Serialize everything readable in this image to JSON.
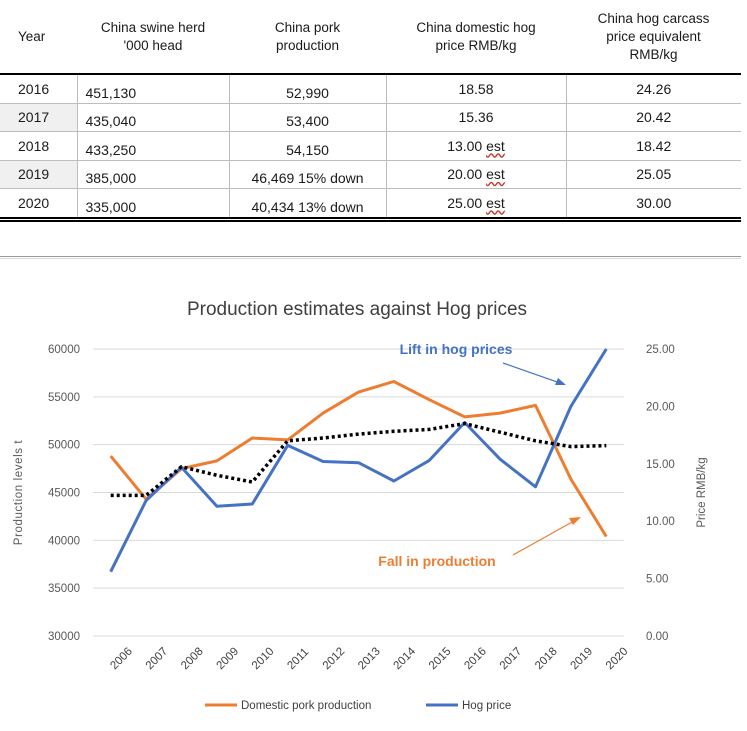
{
  "table": {
    "headers": [
      "Year",
      "China swine herd\n'000 head",
      "China pork\nproduction",
      "China domestic hog\nprice RMB/kg",
      "China hog carcass\nprice equivalent\nRMB/kg"
    ],
    "rows": [
      {
        "year": "2016",
        "herd": "451,130",
        "pork": "52,990",
        "hog_price": "18.58",
        "hog_est": "",
        "carcass": "24.26"
      },
      {
        "year": "2017",
        "herd": "435,040",
        "pork": "53,400",
        "hog_price": "15.36",
        "hog_est": "",
        "carcass": "20.42"
      },
      {
        "year": "2018",
        "herd": "433,250",
        "pork": "54,150",
        "hog_price": "13.00",
        "hog_est": "est",
        "carcass": "18.42"
      },
      {
        "year": "2019",
        "herd": "385,000",
        "pork": "46,469 15% down",
        "hog_price": "20.00",
        "hog_est": "est",
        "carcass": "25.05"
      },
      {
        "year": "2020",
        "herd": "335,000",
        "pork": "40,434 13% down",
        "hog_price": "25.00",
        "hog_est": "est",
        "carcass": "30.00"
      }
    ]
  },
  "chart_data": {
    "type": "line",
    "title": "Production estimates against Hog prices",
    "ylabel_left": "Production levels t",
    "ylabel_right": "Price RMB/kg",
    "x": [
      "2006",
      "2007",
      "2008",
      "2009",
      "2010",
      "2011",
      "2012",
      "2013",
      "2014",
      "2015",
      "2016",
      "2017",
      "2018",
      "2019",
      "2020"
    ],
    "ylim_left": [
      30000,
      60000
    ],
    "yticks_left": [
      "30000",
      "35000",
      "40000",
      "45000",
      "50000",
      "55000",
      "60000"
    ],
    "ylim_right": [
      0,
      25
    ],
    "yticks_right": [
      "0.00",
      "5.00",
      "10.00",
      "15.00",
      "20.00",
      "25.00"
    ],
    "series": [
      {
        "name": "Domestic pork production",
        "axis": "left",
        "color": "#ed7d31",
        "values": [
          48800,
          44300,
          47500,
          48300,
          50700,
          50500,
          53300,
          55500,
          56600,
          54700,
          52900,
          53300,
          54100,
          46400,
          40400
        ]
      },
      {
        "name": "Hog price",
        "axis": "right",
        "color": "#4472c4",
        "values": [
          5.6,
          11.8,
          14.7,
          11.3,
          11.5,
          16.6,
          15.2,
          15.1,
          13.5,
          15.3,
          18.6,
          15.4,
          13.0,
          20.0,
          25.0
        ]
      },
      {
        "axis": "left",
        "color": "#000000",
        "style": "dotted",
        "values": [
          44700,
          44700,
          47700,
          46800,
          46100,
          50400,
          50700,
          51100,
          51400,
          51600,
          52200,
          51300,
          50400,
          49800,
          49900
        ]
      }
    ],
    "annotations": [
      {
        "text": "Lift in hog prices",
        "color": "#4472c4"
      },
      {
        "text": "Fall in production",
        "color": "#ed7d31"
      }
    ],
    "legend_position": "bottom",
    "grid": true
  }
}
